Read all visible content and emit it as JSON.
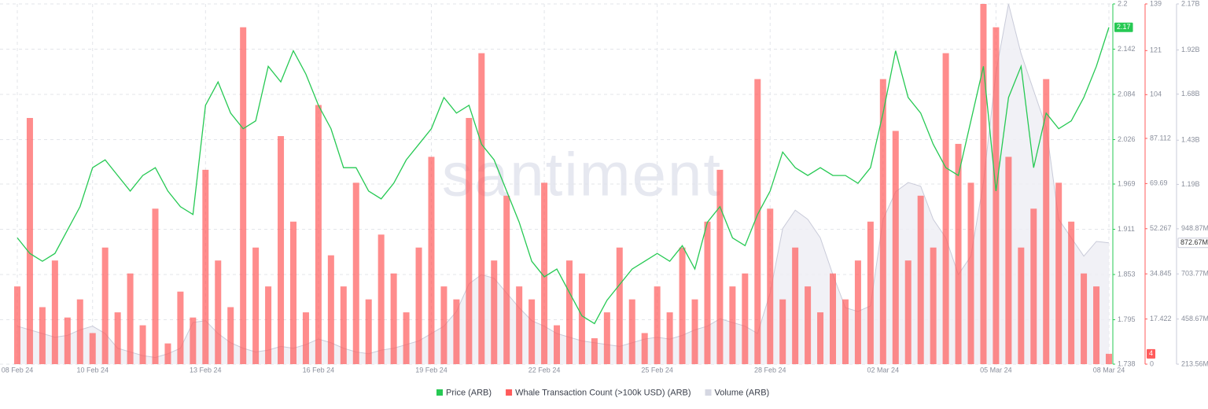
{
  "chart_data": {
    "type": "combo",
    "watermark": "santiment",
    "grid": true,
    "categories": [
      "08 Feb 24",
      null,
      null,
      null,
      null,
      null,
      "10 Feb 24",
      null,
      null,
      null,
      null,
      null,
      null,
      null,
      null,
      "13 Feb 24",
      null,
      null,
      null,
      null,
      null,
      null,
      null,
      null,
      "16 Feb 24",
      null,
      null,
      null,
      null,
      null,
      null,
      null,
      null,
      "19 Feb 24",
      null,
      null,
      null,
      null,
      null,
      null,
      null,
      null,
      "22 Feb 24",
      null,
      null,
      null,
      null,
      null,
      null,
      null,
      null,
      "25 Feb 24",
      null,
      null,
      null,
      null,
      null,
      null,
      null,
      null,
      "28 Feb 24",
      null,
      null,
      null,
      null,
      null,
      null,
      null,
      null,
      "02 Mar 24",
      null,
      null,
      null,
      null,
      null,
      null,
      null,
      null,
      "05 Mar 24",
      null,
      null,
      null,
      null,
      null,
      null,
      null,
      null,
      "08 Mar 24"
    ],
    "ylim": [
      1.738,
      2.2
    ],
    "yticks": [
      2.2,
      2.142,
      2.084,
      2.026,
      1.969,
      1.911,
      1.853,
      1.795,
      1.738
    ],
    "y2lim": [
      0,
      139
    ],
    "y2ticks": [
      139,
      121,
      104,
      87.112,
      69.69,
      52.267,
      34.845,
      17.422,
      0
    ],
    "y3lim": [
      213560000,
      2170000000
    ],
    "y3ticks": [
      {
        "value": 2170000000,
        "label": "2.17B"
      },
      {
        "value": 1920000000,
        "label": "1.92B"
      },
      {
        "value": 1680000000,
        "label": "1.68B"
      },
      {
        "value": 1430000000,
        "label": "1.43B"
      },
      {
        "value": 1190000000,
        "label": "1.19B"
      },
      {
        "value": 948870000,
        "label": "948.87M"
      },
      {
        "value": 703770000,
        "label": "703.77M"
      },
      {
        "value": 458670000,
        "label": "458.67M"
      },
      {
        "value": 213560000,
        "label": "213.56M"
      }
    ],
    "series": [
      {
        "name": "Price (ARB)",
        "type": "line",
        "axis": "y",
        "color": "#26c953",
        "badge": "2.17",
        "values": [
          1.9,
          1.88,
          1.87,
          1.88,
          1.91,
          1.94,
          1.99,
          2.0,
          1.98,
          1.96,
          1.98,
          1.99,
          1.96,
          1.94,
          1.93,
          2.07,
          2.1,
          2.06,
          2.04,
          2.05,
          2.12,
          2.1,
          2.14,
          2.11,
          2.07,
          2.04,
          1.99,
          1.99,
          1.96,
          1.95,
          1.97,
          2.0,
          2.02,
          2.04,
          2.08,
          2.06,
          2.07,
          2.02,
          2.0,
          1.96,
          1.92,
          1.87,
          1.85,
          1.86,
          1.83,
          1.8,
          1.79,
          1.82,
          1.84,
          1.86,
          1.87,
          1.88,
          1.87,
          1.89,
          1.86,
          1.92,
          1.94,
          1.9,
          1.89,
          1.93,
          1.96,
          2.01,
          1.99,
          1.98,
          1.99,
          1.98,
          1.98,
          1.97,
          1.99,
          2.06,
          2.14,
          2.08,
          2.06,
          2.02,
          1.99,
          1.98,
          2.05,
          2.12,
          1.96,
          2.08,
          2.12,
          1.99,
          2.06,
          2.04,
          2.05,
          2.08,
          2.12,
          2.17
        ]
      },
      {
        "name": "Whale Transaction Count (>100k USD) (ARB)",
        "type": "bar",
        "axis": "y2",
        "color": "#ff5b5b",
        "badge": "4",
        "values": [
          30,
          95,
          22,
          40,
          18,
          25,
          12,
          45,
          20,
          35,
          15,
          60,
          8,
          28,
          18,
          75,
          40,
          22,
          130,
          45,
          30,
          88,
          55,
          20,
          100,
          42,
          30,
          70,
          25,
          50,
          35,
          20,
          45,
          80,
          30,
          25,
          95,
          120,
          40,
          65,
          30,
          25,
          70,
          15,
          40,
          35,
          10,
          20,
          45,
          25,
          12,
          30,
          20,
          45,
          25,
          55,
          75,
          30,
          35,
          110,
          60,
          25,
          45,
          30,
          20,
          35,
          25,
          40,
          55,
          110,
          90,
          40,
          65,
          45,
          120,
          85,
          70,
          139,
          130,
          80,
          45,
          60,
          110,
          70,
          55,
          35,
          30,
          4
        ]
      },
      {
        "name": "Volume (ARB)",
        "type": "area",
        "axis": "y3",
        "color": "#c9cbd9",
        "badge": "872.67M",
        "values": [
          420000000,
          400000000,
          380000000,
          360000000,
          370000000,
          400000000,
          420000000,
          380000000,
          300000000,
          280000000,
          260000000,
          250000000,
          270000000,
          300000000,
          440000000,
          450000000,
          380000000,
          330000000,
          300000000,
          280000000,
          290000000,
          310000000,
          300000000,
          320000000,
          350000000,
          330000000,
          300000000,
          280000000,
          270000000,
          290000000,
          300000000,
          320000000,
          340000000,
          380000000,
          420000000,
          500000000,
          650000000,
          700000000,
          680000000,
          600000000,
          520000000,
          450000000,
          420000000,
          380000000,
          360000000,
          340000000,
          330000000,
          320000000,
          310000000,
          330000000,
          350000000,
          360000000,
          350000000,
          370000000,
          400000000,
          420000000,
          460000000,
          440000000,
          420000000,
          380000000,
          600000000,
          950000000,
          1050000000,
          1000000000,
          900000000,
          700000000,
          520000000,
          500000000,
          530000000,
          1000000000,
          1150000000,
          1200000000,
          1180000000,
          1000000000,
          900000000,
          700000000,
          800000000,
          1200000000,
          1800000000,
          2170000000,
          1900000000,
          1700000000,
          1500000000,
          1000000000,
          900000000,
          800000000,
          880000000,
          872670000
        ]
      }
    ]
  }
}
